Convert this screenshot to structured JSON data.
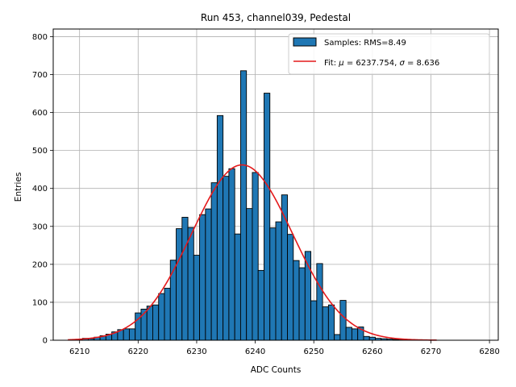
{
  "chart_data": {
    "type": "bar",
    "title": "Run 453, channel039, Pedestal",
    "xlabel": "ADC Counts",
    "ylabel": "Entries",
    "xlim": [
      6205.5,
      6281.5
    ],
    "ylim": [
      0,
      820
    ],
    "xticks": [
      6210,
      6220,
      6230,
      6240,
      6250,
      6260,
      6270,
      6280
    ],
    "yticks": [
      0,
      100,
      200,
      300,
      400,
      500,
      600,
      700,
      800
    ],
    "grid": true,
    "legend_position": "top-right",
    "histogram": {
      "name": "Samples: RMS=8.49",
      "color": "#1f77b4",
      "bin_width": 1,
      "x": [
        6209,
        6210,
        6211,
        6212,
        6213,
        6214,
        6215,
        6216,
        6217,
        6218,
        6219,
        6220,
        6221,
        6222,
        6223,
        6224,
        6225,
        6226,
        6227,
        6228,
        6229,
        6230,
        6231,
        6232,
        6233,
        6234,
        6235,
        6236,
        6237,
        6238,
        6239,
        6240,
        6241,
        6242,
        6243,
        6244,
        6245,
        6246,
        6247,
        6248,
        6249,
        6250,
        6251,
        6252,
        6253,
        6254,
        6255,
        6256,
        6257,
        6258,
        6259,
        6260,
        6261,
        6262,
        6263,
        6264,
        6265,
        6266,
        6267,
        6268,
        6269,
        6270
      ],
      "values": [
        1,
        2,
        5,
        4,
        8,
        12,
        16,
        22,
        28,
        30,
        30,
        72,
        82,
        90,
        93,
        123,
        137,
        211,
        294,
        324,
        297,
        224,
        331,
        346,
        415,
        592,
        432,
        452,
        280,
        710,
        347,
        442,
        184,
        651,
        296,
        312,
        383,
        279,
        210,
        191,
        234,
        104,
        202,
        88,
        93,
        15,
        105,
        34,
        30,
        35,
        10,
        8,
        5,
        4,
        3,
        2,
        1,
        1,
        1,
        0,
        0,
        1
      ]
    },
    "fit": {
      "name": "Fit: μ = 6237.754, σ = 8.636",
      "name_prefix": "Fit: ",
      "mu_symbol": "μ",
      "mu_text": " = 6237.754, ",
      "sigma_symbol": "σ",
      "sigma_text": " = 8.636",
      "color": "#e41a1c",
      "mu": 6237.754,
      "sigma": 8.636,
      "amplitude": 462,
      "x_range": [
        6208,
        6271
      ]
    }
  }
}
